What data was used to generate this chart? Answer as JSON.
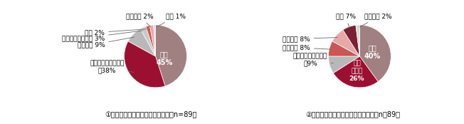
{
  "chart1": {
    "title": "①場面：患者・家族への唂理問題（n=89）",
    "labels": [
      "ケア",
      "コミュニケーション",
      "実習指導",
      "医療職同士の連携",
      "診療",
      "身体拘束",
      "手術"
    ],
    "values": [
      45,
      38,
      9,
      3,
      2,
      2,
      1
    ],
    "colors": [
      "#a08080",
      "#9b1030",
      "#b8b8b8",
      "#c8c8c8",
      "#cc5555",
      "#e8a8a8",
      "#d8d8d8"
    ]
  },
  "chart2": {
    "title": "②問題点：患者・家族への唂理問題（n＝89）",
    "labels": [
      "言葉",
      "ケアの方法",
      "医療・看護行為自体",
      "説明内容",
      "指導方法",
      "態度",
      "管理方法"
    ],
    "values": [
      40,
      26,
      9,
      8,
      8,
      7,
      2
    ],
    "colors": [
      "#a08080",
      "#9b1030",
      "#b8b8b8",
      "#cc5555",
      "#e8a8a8",
      "#7a2035",
      "#d8d8d8"
    ]
  },
  "background_color": "#ffffff",
  "font_size": 6.5,
  "title_font_size": 7.0
}
